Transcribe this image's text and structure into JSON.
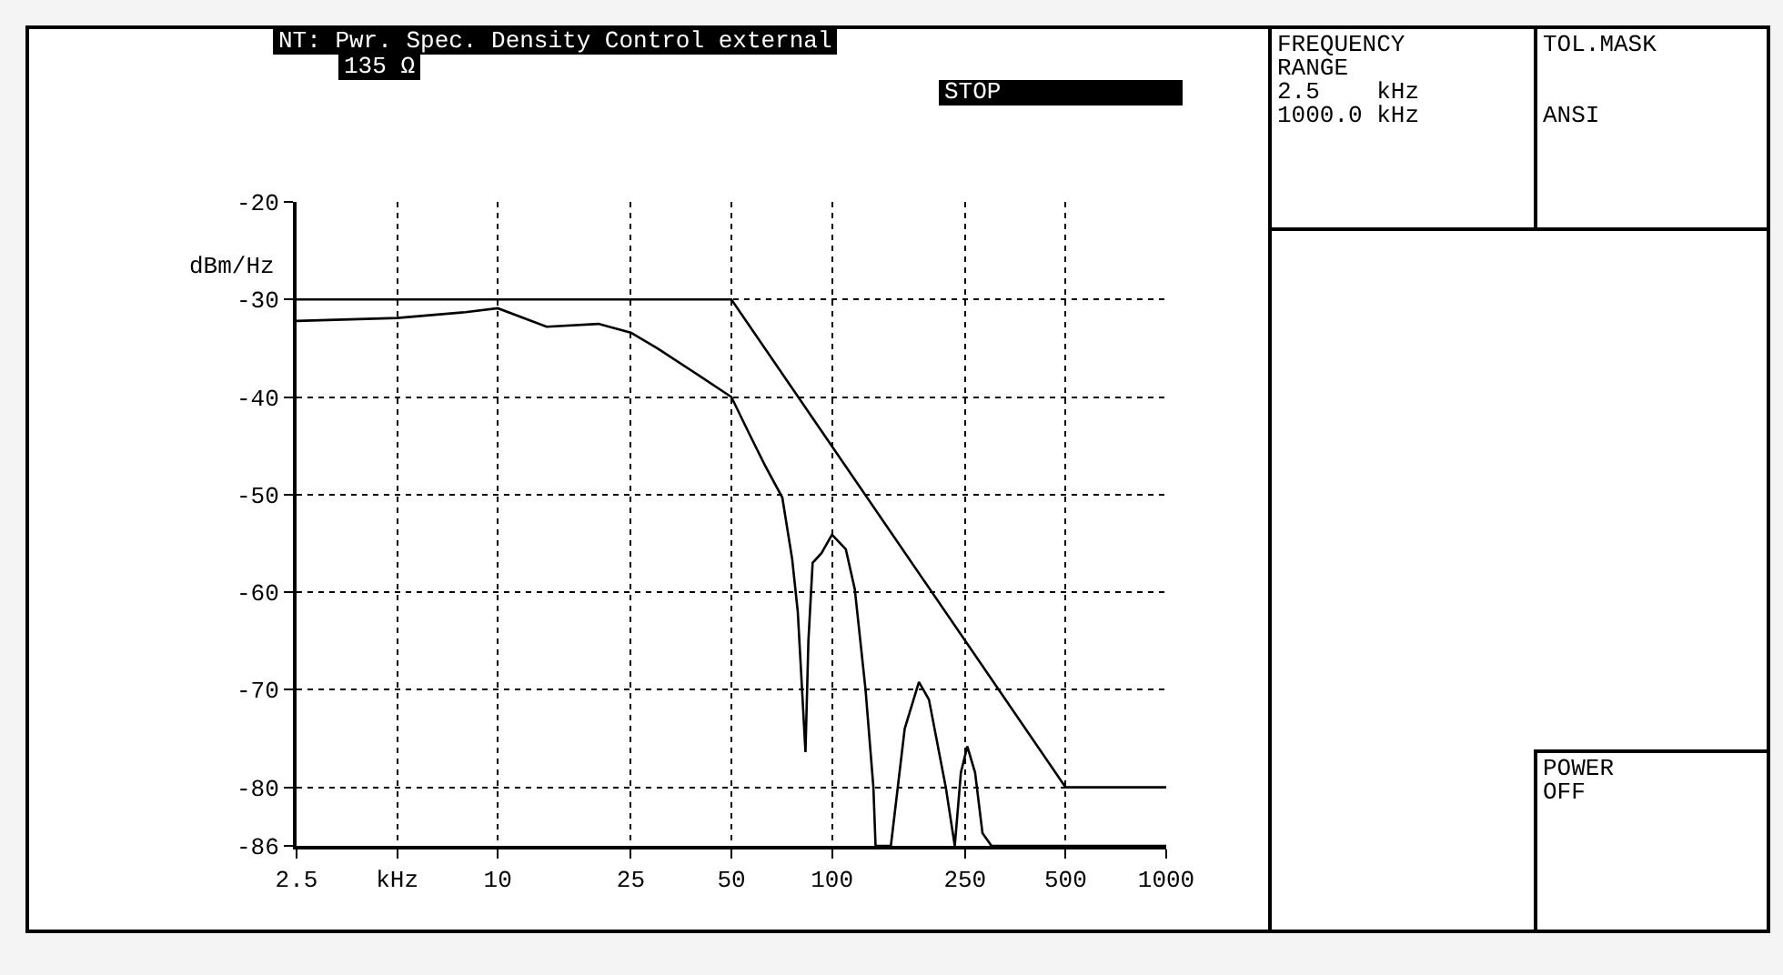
{
  "chart_data": {
    "type": "line",
    "title": "NT: Pwr. Spec. Density Control external",
    "ylabel": "dBm/Hz",
    "annotations": [
      "135 Ω",
      "STOP",
      "FREQUENCY\nRANGE\n2.5    kHz\n1000.0 kHz",
      "TOL.MASK\n\n\nANSI",
      "POWER\nOFF"
    ],
    "log": "x",
    "xlim": [
      2.5,
      1000
    ],
    "xticks": [
      2.5,
      {
        "value": 5,
        "label": "kHz"
      },
      10,
      25,
      50,
      100,
      250,
      500,
      1000
    ],
    "ylim": [
      -86,
      -20
    ],
    "yticks": [
      -20,
      -30,
      -40,
      -50,
      -60,
      -70,
      -80,
      -86
    ],
    "grid": true,
    "line_style": "solid",
    "marker": "none",
    "series": [
      {
        "color": "#000000",
        "x": [
          2.5,
          50,
          500,
          1000
        ],
        "values": [
          -30,
          -30,
          -80,
          -80
        ]
      },
      {
        "color": "#000000",
        "x": [
          2.5,
          5,
          8,
          10,
          14,
          20,
          25,
          30,
          40,
          50,
          57,
          63,
          71,
          76,
          79,
          83.3,
          85,
          87.5,
          93,
          100,
          110,
          117,
          126,
          133,
          135,
          150,
          165,
          182,
          195,
          219,
          233,
          243,
          254,
          268,
          282,
          300,
          1000
        ],
        "values": [
          -32.2,
          -31.9,
          -31.3,
          -30.9,
          -32.8,
          -32.5,
          -33.4,
          -35,
          -37.8,
          -40,
          -44,
          -47,
          -50.3,
          -56.6,
          -62,
          -76.4,
          -65,
          -57,
          -56,
          -54.1,
          -55.6,
          -59.7,
          -70,
          -80,
          -86,
          -86,
          -74,
          -69.2,
          -71,
          -80,
          -86,
          -78.5,
          -75.8,
          -78.5,
          -84.7,
          -86,
          -86
        ]
      }
    ]
  }
}
